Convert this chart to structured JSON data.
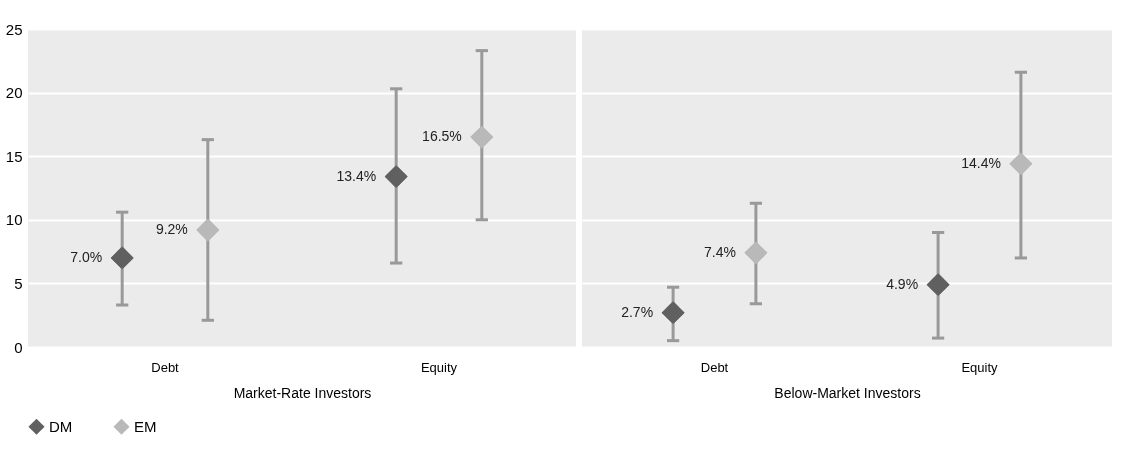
{
  "chart_data": [
    {
      "type": "scatter",
      "categories": [
        "Debt",
        "Equity"
      ],
      "xlabel": "Market-Rate Investors",
      "ylim": [
        0,
        25
      ],
      "yticks": [
        0,
        5,
        10,
        15,
        20,
        25
      ],
      "grid": "y",
      "marker": "diamond",
      "legend": "bottom",
      "series": [
        {
          "name": "DM",
          "color": "#606060",
          "values": [
            7.0,
            13.4
          ],
          "errors": [
            [
              3.3,
              10.6
            ],
            [
              6.6,
              20.3
            ]
          ],
          "value_labels": [
            "7.0%",
            "13.4%"
          ]
        },
        {
          "name": "EM",
          "color": "#b9b9b9",
          "values": [
            9.2,
            16.5
          ],
          "errors": [
            [
              2.1,
              16.3
            ],
            [
              10.0,
              23.3
            ]
          ],
          "value_labels": [
            "9.2%",
            "16.5%"
          ]
        }
      ]
    },
    {
      "type": "scatter",
      "categories": [
        "Debt",
        "Equity"
      ],
      "xlabel": "Below-Market Investors",
      "ylim": [
        0,
        25
      ],
      "yticks": [
        0,
        5,
        10,
        15,
        20,
        25
      ],
      "grid": "y",
      "marker": "diamond",
      "tick_labels": "x",
      "series": [
        {
          "name": "DM",
          "color": "#606060",
          "values": [
            2.7,
            4.9
          ],
          "errors": [
            [
              0.5,
              4.7
            ],
            [
              0.7,
              9.0
            ]
          ],
          "value_labels": [
            "2.7%",
            "4.9%"
          ]
        },
        {
          "name": "EM",
          "color": "#b9b9b9",
          "values": [
            7.4,
            14.4
          ],
          "errors": [
            [
              3.4,
              11.3
            ],
            [
              7.0,
              21.6
            ]
          ],
          "value_labels": [
            "7.4%",
            "14.4%"
          ]
        }
      ]
    }
  ]
}
